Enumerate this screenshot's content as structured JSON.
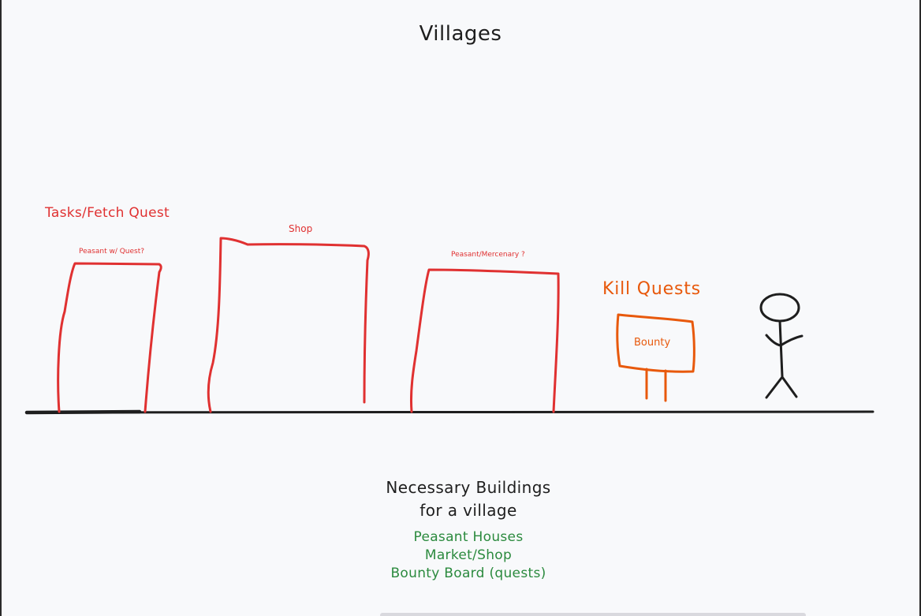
{
  "title": "Villages",
  "colors": {
    "background": "#f8f9fb",
    "ink": "#1e1e1e",
    "red": "#e03131",
    "orange": "#e8590c",
    "green": "#2b8a3e"
  },
  "sections": {
    "tasks": {
      "heading": "Tasks/Fetch Quest",
      "buildings": [
        {
          "label": "Peasant w/ Quest?"
        },
        {
          "label": "Shop"
        },
        {
          "label": "Peasant/Mercenary ?"
        }
      ]
    },
    "kill": {
      "heading": "Kill Quests",
      "board_label": "Bounty"
    }
  },
  "figure": {
    "icon": "stick-figure-icon"
  },
  "notes": {
    "heading_line1": "Necessary Buildings",
    "heading_line2": "for a village",
    "items": [
      "Peasant Houses",
      "Market/Shop",
      "Bounty Board (quests)"
    ]
  }
}
